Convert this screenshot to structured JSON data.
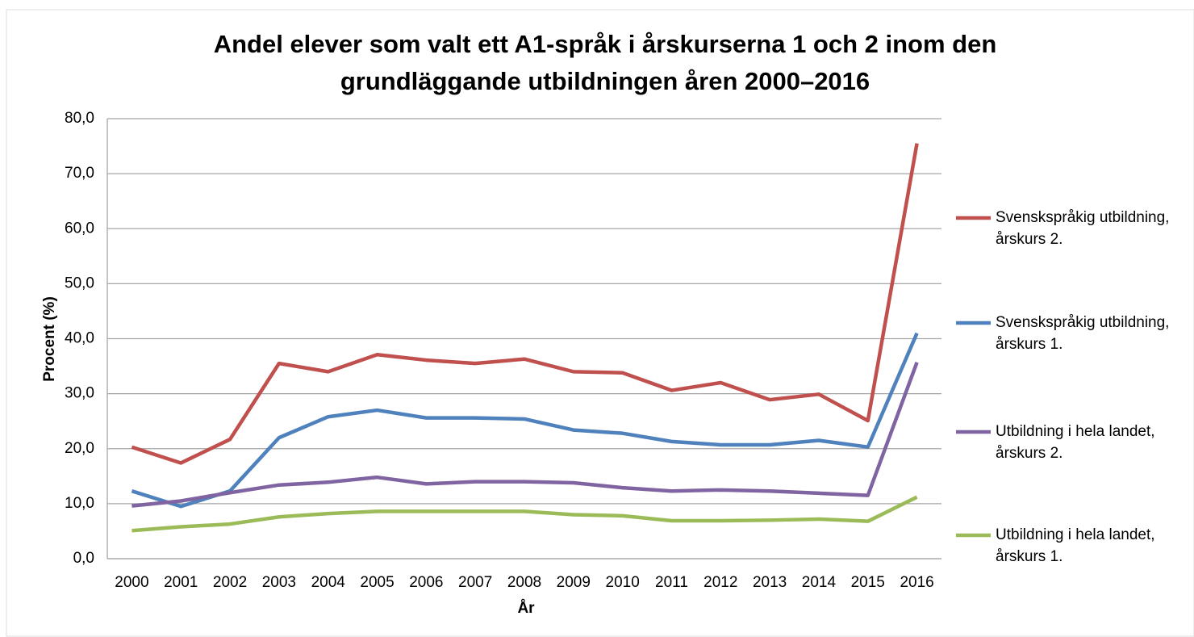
{
  "chart_data": {
    "type": "line",
    "title": "Andel elever som valt ett A1-språk i årskurserna 1 och 2 inom den grundläggande utbildningen åren 2000–2016",
    "x_label": "År",
    "y_label": "Procent (%)",
    "categories": [
      "2000",
      "2001",
      "2002",
      "2003",
      "2004",
      "2005",
      "2006",
      "2007",
      "2008",
      "2009",
      "2010",
      "2011",
      "2012",
      "2013",
      "2014",
      "2015",
      "2016"
    ],
    "series": [
      {
        "name": "Svenskspråkig utbildning, årskurs 2.",
        "color": "#c0504d",
        "values": [
          20.3,
          17.4,
          21.7,
          35.5,
          34.0,
          37.1,
          36.1,
          35.5,
          36.3,
          34.0,
          33.8,
          30.6,
          32.0,
          28.9,
          29.9,
          25.1,
          75.5
        ]
      },
      {
        "name": "Svenskspråkig utbildning, årskurs 1.",
        "color": "#4f81bd",
        "values": [
          12.3,
          9.5,
          12.3,
          22.0,
          25.8,
          27.0,
          25.6,
          25.6,
          25.4,
          23.4,
          22.8,
          21.3,
          20.7,
          20.7,
          21.5,
          20.3,
          41.0
        ]
      },
      {
        "name": "Utbildning i hela landet, årskurs 2.",
        "color": "#8064a2",
        "values": [
          9.6,
          10.5,
          12.0,
          13.4,
          13.9,
          14.8,
          13.6,
          14.0,
          14.0,
          13.8,
          12.9,
          12.3,
          12.5,
          12.3,
          11.9,
          11.5,
          35.7
        ]
      },
      {
        "name": "Utbildning i hela landet, årskurs 1.",
        "color": "#9bbb59",
        "values": [
          5.1,
          5.8,
          6.3,
          7.6,
          8.2,
          8.6,
          8.6,
          8.6,
          8.6,
          8.0,
          7.8,
          6.9,
          6.9,
          7.0,
          7.2,
          6.8,
          11.2
        ]
      }
    ],
    "ylim": [
      0,
      80
    ],
    "yticks": [
      {
        "value": 0,
        "label": "0,0"
      },
      {
        "value": 10,
        "label": "10,0"
      },
      {
        "value": 20,
        "label": "20,0"
      },
      {
        "value": 30,
        "label": "30,0"
      },
      {
        "value": 40,
        "label": "40,0"
      },
      {
        "value": 50,
        "label": "50,0"
      },
      {
        "value": 60,
        "label": "60,0"
      },
      {
        "value": 70,
        "label": "70,0"
      },
      {
        "value": 80,
        "label": "80,0"
      }
    ],
    "grid": true,
    "legend": "right"
  }
}
